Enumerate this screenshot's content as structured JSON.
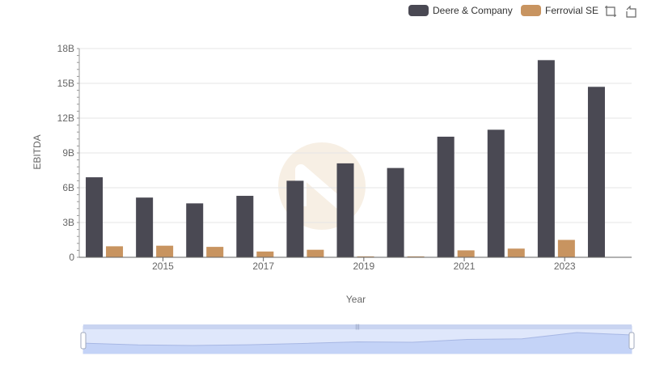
{
  "legend": {
    "items": [
      {
        "label": "Deere & Company",
        "color": "#4a4953"
      },
      {
        "label": "Ferrovial SE",
        "color": "#c89460"
      }
    ]
  },
  "toolbox": {
    "icons": [
      "zoom-icon",
      "restore-icon"
    ]
  },
  "chart_data": {
    "type": "bar",
    "xlabel": "Year",
    "ylabel": "EBITDA",
    "categories": [
      "2014",
      "2015",
      "2016",
      "2017",
      "2018",
      "2019",
      "2020",
      "2021",
      "2022",
      "2023",
      "2024"
    ],
    "x_tick_labels": [
      "2015",
      "2017",
      "2019",
      "2021",
      "2023"
    ],
    "y_tick_labels": [
      "0",
      "3B",
      "6B",
      "9B",
      "12B",
      "15B",
      "18B"
    ],
    "ylim": [
      0,
      18000000000
    ],
    "series": [
      {
        "name": "Deere & Company",
        "color": "#4a4953",
        "values": [
          6900000000,
          5150000000,
          4650000000,
          5300000000,
          6600000000,
          8100000000,
          7700000000,
          10400000000,
          11000000000,
          17000000000,
          14700000000
        ]
      },
      {
        "name": "Ferrovial SE",
        "color": "#c89460",
        "values": [
          950000000,
          1000000000,
          900000000,
          500000000,
          650000000,
          80000000,
          80000000,
          600000000,
          750000000,
          1500000000,
          0
        ]
      }
    ],
    "grid": true,
    "legend_position": "top-right",
    "data_zoom": {
      "start": 0,
      "end": 100
    }
  }
}
